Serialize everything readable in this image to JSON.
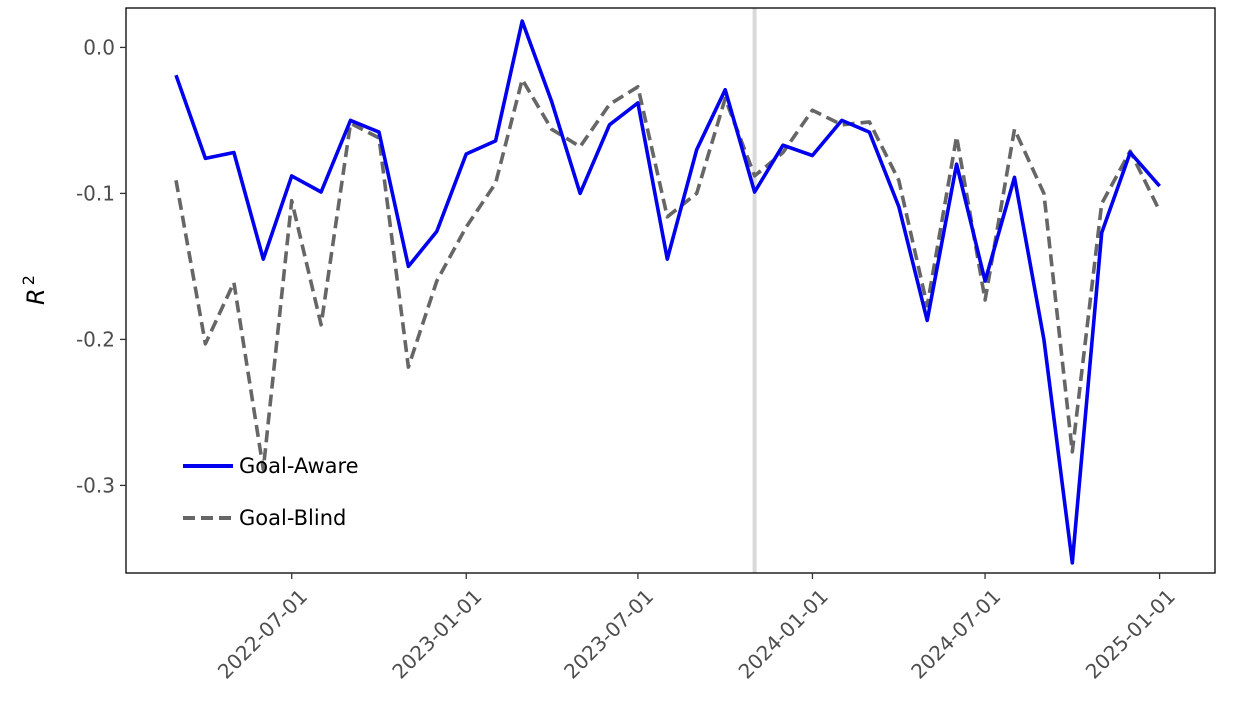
{
  "chart_data": {
    "type": "line",
    "ylabel": "R",
    "ylabel_superscript": "2",
    "xlabel": "",
    "title": "",
    "ylim": [
      -0.36,
      0.027
    ],
    "xlim": [
      "2022-03-01",
      "2025-02-01"
    ],
    "y_ticks": [
      {
        "value": 0.0,
        "label": "0.0"
      },
      {
        "value": -0.1,
        "label": "-0.1"
      },
      {
        "value": -0.2,
        "label": "-0.2"
      },
      {
        "value": -0.3,
        "label": "-0.3"
      }
    ],
    "x_ticks": [
      {
        "value": "2022-07-01",
        "label": "2022-07-01"
      },
      {
        "value": "2023-01-01",
        "label": "2023-01-01"
      },
      {
        "value": "2023-07-01",
        "label": "2023-07-01"
      },
      {
        "value": "2024-01-01",
        "label": "2024-01-01"
      },
      {
        "value": "2024-07-01",
        "label": "2024-07-01"
      },
      {
        "value": "2025-01-01",
        "label": "2025-01-01"
      }
    ],
    "vertical_reference_line": {
      "x": "2023-11-01",
      "color": "#d9d9d9"
    },
    "grid": false,
    "legend": {
      "position": "bottom-left"
    },
    "series": [
      {
        "name": "Goal-Aware",
        "color": "#0000ee",
        "style": "solid",
        "x": [
          "2022-03-01",
          "2022-04-01",
          "2022-05-01",
          "2022-06-01",
          "2022-07-01",
          "2022-08-01",
          "2022-09-01",
          "2022-10-01",
          "2022-11-01",
          "2022-12-01",
          "2023-01-01",
          "2023-02-01",
          "2023-03-01",
          "2023-04-01",
          "2023-05-01",
          "2023-06-01",
          "2023-07-01",
          "2023-08-01",
          "2023-09-01",
          "2023-10-01",
          "2023-11-01",
          "2023-12-01",
          "2024-01-01",
          "2024-02-01",
          "2024-03-01",
          "2024-04-01",
          "2024-05-01",
          "2024-06-01",
          "2024-07-01",
          "2024-08-01",
          "2024-09-01",
          "2024-10-01",
          "2024-11-01",
          "2024-12-01",
          "2025-01-01"
        ],
        "values": [
          -0.019,
          -0.076,
          -0.072,
          -0.145,
          -0.088,
          -0.099,
          -0.05,
          -0.058,
          -0.15,
          -0.126,
          -0.073,
          -0.064,
          0.018,
          -0.037,
          -0.1,
          -0.053,
          -0.038,
          -0.145,
          -0.07,
          -0.029,
          -0.099,
          -0.067,
          -0.074,
          -0.05,
          -0.058,
          -0.109,
          -0.187,
          -0.08,
          -0.16,
          -0.089,
          -0.2,
          -0.353,
          -0.127,
          -0.072,
          -0.095
        ]
      },
      {
        "name": "Goal-Blind",
        "color": "#666666",
        "style": "dashed",
        "x": [
          "2022-03-01",
          "2022-04-01",
          "2022-05-01",
          "2022-06-01",
          "2022-07-01",
          "2022-08-01",
          "2022-09-01",
          "2022-10-01",
          "2022-11-01",
          "2022-12-01",
          "2023-01-01",
          "2023-02-01",
          "2023-03-01",
          "2023-04-01",
          "2023-05-01",
          "2023-06-01",
          "2023-07-01",
          "2023-08-01",
          "2023-09-01",
          "2023-10-01",
          "2023-11-01",
          "2023-12-01",
          "2024-01-01",
          "2024-02-01",
          "2024-03-01",
          "2024-04-01",
          "2024-05-01",
          "2024-06-01",
          "2024-07-01",
          "2024-08-01",
          "2024-09-01",
          "2024-10-01",
          "2024-11-01",
          "2024-12-01",
          "2025-01-01"
        ],
        "values": [
          -0.091,
          -0.203,
          -0.161,
          -0.289,
          -0.105,
          -0.19,
          -0.052,
          -0.062,
          -0.219,
          -0.16,
          -0.123,
          -0.093,
          -0.022,
          -0.056,
          -0.068,
          -0.039,
          -0.027,
          -0.116,
          -0.1,
          -0.035,
          -0.088,
          -0.072,
          -0.043,
          -0.053,
          -0.051,
          -0.091,
          -0.177,
          -0.061,
          -0.173,
          -0.056,
          -0.1,
          -0.277,
          -0.107,
          -0.071,
          -0.112
        ]
      }
    ]
  }
}
